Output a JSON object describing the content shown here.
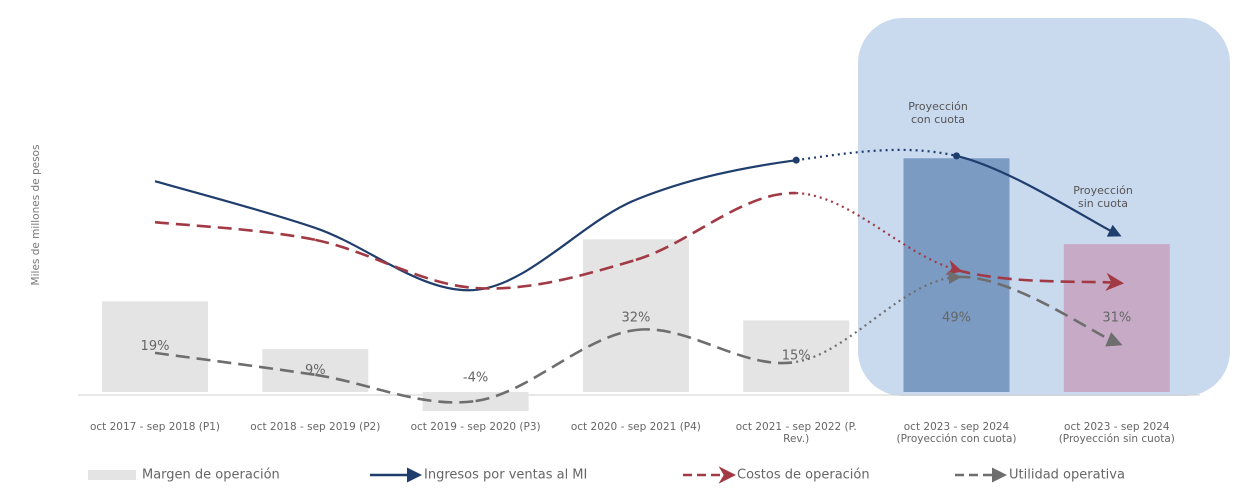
{
  "chart_data": {
    "type": "bar",
    "y_label": "Miles de millones de pesos",
    "categories": [
      "oct 2017 - sep 2018 (P1)",
      "oct 2018 - sep 2019 (P2)",
      "oct 2019 - sep 2020 (P3)",
      "oct 2020 - sep 2021 (P4)",
      "oct 2021 - sep 2022 (P. Rev.)",
      "oct 2023 - sep 2024 (Proyección con cuota)",
      "oct 2023 - sep 2024 (Proyección sin cuota)"
    ],
    "ylim": [
      -5,
      55
    ],
    "annotations": [
      "Proyección con cuota",
      "Proyección sin cuota"
    ],
    "series": [
      {
        "name": "Margen de operación",
        "type": "bar",
        "colors": [
          "#e4e4e4",
          "#e4e4e4",
          "#e4e4e4",
          "#e4e4e4",
          "#e4e4e4",
          "#7b9bc3",
          "#c7abc6"
        ],
        "values": [
          19,
          9,
          -4,
          32,
          15,
          49,
          31
        ],
        "value_labels": [
          "19%",
          "9%",
          "-4%",
          "32%",
          "15%",
          "49%",
          "31%"
        ]
      },
      {
        "name": "Ingresos por ventas al MI",
        "type": "line",
        "color": "#1f3d6d",
        "dash": "solid",
        "values": [
          44.2,
          34.4,
          21.4,
          40.3,
          48.6,
          49.5,
          33.1
        ]
      },
      {
        "name": "Costos de operación",
        "type": "line",
        "color": "#a13a44",
        "dash": "dashed",
        "values": [
          35.6,
          31.9,
          21.8,
          27.7,
          41.7,
          25.6,
          22.9
        ]
      },
      {
        "name": "Utilidad operativa",
        "type": "line",
        "color": "#6e6e6e",
        "dash": "dashed",
        "values": [
          8.2,
          3.6,
          -1.9,
          13,
          6.3,
          24.1,
          10.3
        ]
      }
    ]
  }
}
